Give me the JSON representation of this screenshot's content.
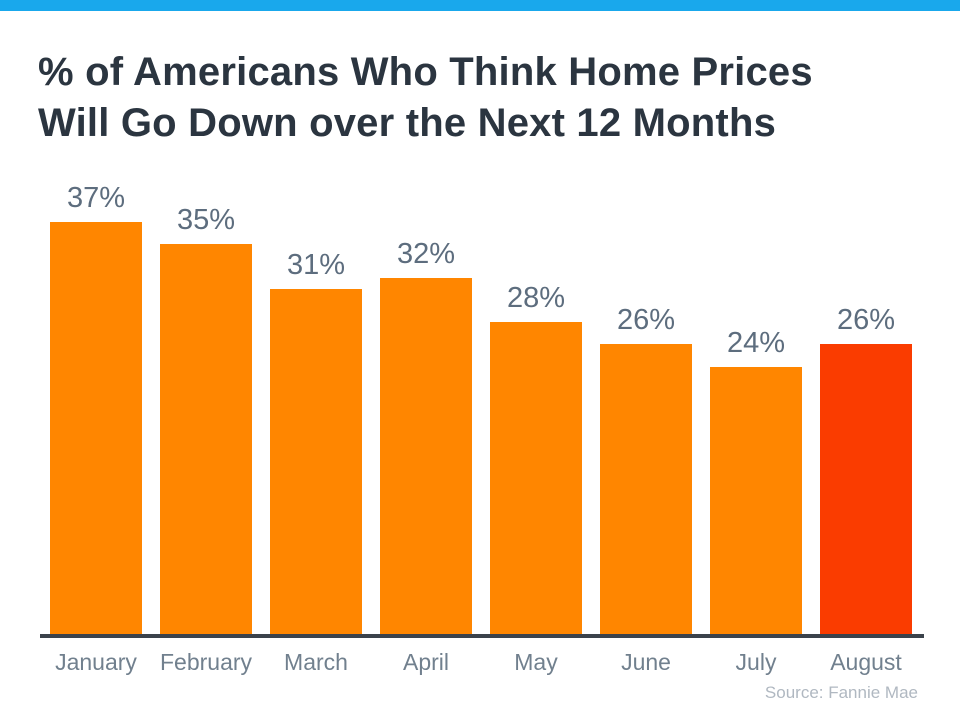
{
  "header": {
    "title_line1": "% of Americans Who Think Home Prices",
    "title_line2": "Will Go Down over the Next 12 Months"
  },
  "footer": {
    "source": "Source: Fannie Mae"
  },
  "colors": {
    "accent_blue": "#19a8ec",
    "bar_default": "#ff8600",
    "bar_highlight": "#fa3c00",
    "title_text": "#2b3540",
    "value_label": "#5d6d7e",
    "month_label": "#71808e",
    "axis": "#3b424b",
    "source_text": "#b0b8c1"
  },
  "chart_data": {
    "type": "bar",
    "title": "% of Americans Who Think Home Prices Will Go Down over the Next 12 Months",
    "categories": [
      "January",
      "February",
      "March",
      "April",
      "May",
      "June",
      "July",
      "August"
    ],
    "values": [
      37,
      35,
      31,
      32,
      28,
      26,
      24,
      26
    ],
    "value_labels": [
      "37%",
      "35%",
      "31%",
      "32%",
      "28%",
      "26%",
      "24%",
      "26%"
    ],
    "highlight_index": 7,
    "xlabel": "",
    "ylabel": "",
    "ylim": [
      0,
      40
    ],
    "grid": false,
    "legend": false,
    "legend_position": "none",
    "annotations": [
      "Source: Fannie Mae"
    ]
  }
}
